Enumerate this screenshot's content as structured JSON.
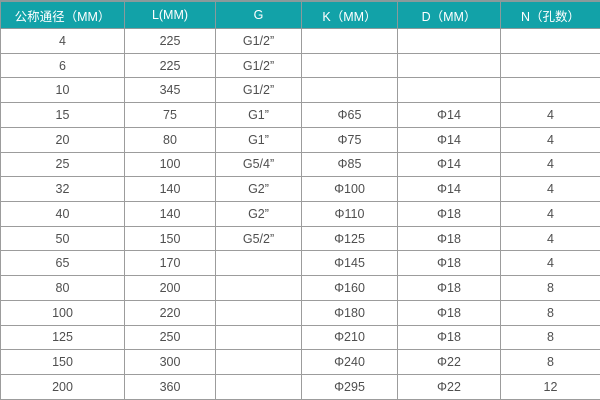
{
  "table": {
    "name": "flange-dimension-spec-table",
    "headers": [
      "公称通径（MM）",
      "L(MM)",
      "G",
      "K（MM）",
      "D（MM）",
      "N（孔数）"
    ],
    "rows": [
      [
        "4",
        "225",
        "G1/2”",
        "",
        "",
        ""
      ],
      [
        "6",
        "225",
        "G1/2”",
        "",
        "",
        ""
      ],
      [
        "10",
        "345",
        "G1/2”",
        "",
        "",
        ""
      ],
      [
        "15",
        "75",
        "G1”",
        "Φ65",
        "Φ14",
        "4"
      ],
      [
        "20",
        "80",
        "G1”",
        "Φ75",
        "Φ14",
        "4"
      ],
      [
        "25",
        "100",
        "G5/4”",
        "Φ85",
        "Φ14",
        "4"
      ],
      [
        "32",
        "140",
        "G2”",
        "Φ100",
        "Φ14",
        "4"
      ],
      [
        "40",
        "140",
        "G2”",
        "Φ110",
        "Φ18",
        "4"
      ],
      [
        "50",
        "150",
        "G5/2”",
        "Φ125",
        "Φ18",
        "4"
      ],
      [
        "65",
        "170",
        "",
        "Φ145",
        "Φ18",
        "4"
      ],
      [
        "80",
        "200",
        "",
        "Φ160",
        "Φ18",
        "8"
      ],
      [
        "100",
        "220",
        "",
        "Φ180",
        "Φ18",
        "8"
      ],
      [
        "125",
        "250",
        "",
        "Φ210",
        "Φ18",
        "8"
      ],
      [
        "150",
        "300",
        "",
        "Φ240",
        "Φ22",
        "8"
      ],
      [
        "200",
        "360",
        "",
        "Φ295",
        "Φ22",
        "12"
      ]
    ],
    "colors": {
      "header_bg": "#12a2a8",
      "header_text": "#ffffff",
      "border": "#9c9c9c",
      "cell_text": "#4f4f4f",
      "row_bg": "#ffffff"
    }
  }
}
